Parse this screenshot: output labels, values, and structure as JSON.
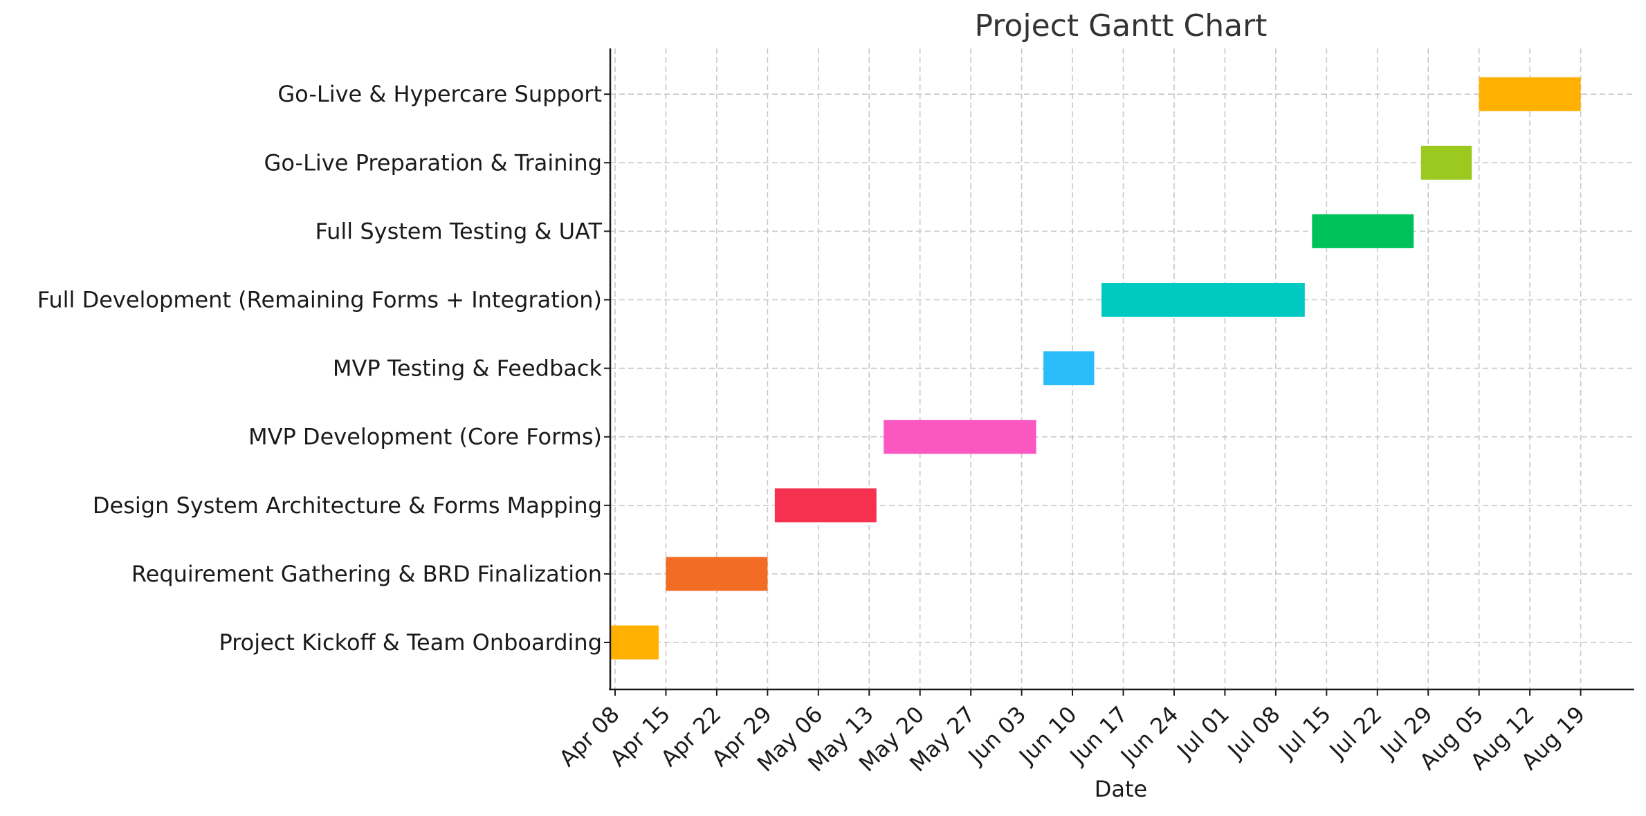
{
  "chart_data": {
    "type": "gantt",
    "title": "Project Gantt Chart",
    "xlabel": "Date",
    "ylabel": "",
    "x_axis": {
      "type": "date",
      "range": [
        "2025-04-08",
        "2025-08-26"
      ],
      "ticks": [
        {
          "date": "2025-04-08",
          "label": "Apr 08"
        },
        {
          "date": "2025-04-15",
          "label": "Apr 15"
        },
        {
          "date": "2025-04-22",
          "label": "Apr 22"
        },
        {
          "date": "2025-04-29",
          "label": "Apr 29"
        },
        {
          "date": "2025-05-06",
          "label": "May 06"
        },
        {
          "date": "2025-05-13",
          "label": "May 13"
        },
        {
          "date": "2025-05-20",
          "label": "May 20"
        },
        {
          "date": "2025-05-27",
          "label": "May 27"
        },
        {
          "date": "2025-06-03",
          "label": "Jun 03"
        },
        {
          "date": "2025-06-10",
          "label": "Jun 10"
        },
        {
          "date": "2025-06-17",
          "label": "Jun 17"
        },
        {
          "date": "2025-06-24",
          "label": "Jun 24"
        },
        {
          "date": "2025-07-01",
          "label": "Jul 01"
        },
        {
          "date": "2025-07-08",
          "label": "Jul 08"
        },
        {
          "date": "2025-07-15",
          "label": "Jul 15"
        },
        {
          "date": "2025-07-22",
          "label": "Jul 22"
        },
        {
          "date": "2025-07-29",
          "label": "Jul 29"
        },
        {
          "date": "2025-08-05",
          "label": "Aug 05"
        },
        {
          "date": "2025-08-12",
          "label": "Aug 12"
        },
        {
          "date": "2025-08-19",
          "label": "Aug 19"
        }
      ]
    },
    "grid": true,
    "legend": "none",
    "tasks": [
      {
        "name": "Project Kickoff & Team Onboarding",
        "start": "2025-04-07",
        "end": "2025-04-14",
        "color": "#FFB000"
      },
      {
        "name": "Requirement Gathering & BRD Finalization",
        "start": "2025-04-15",
        "end": "2025-04-29",
        "color": "#F36C23"
      },
      {
        "name": "Design System Architecture & Forms Mapping",
        "start": "2025-04-30",
        "end": "2025-05-14",
        "color": "#F5314F"
      },
      {
        "name": "MVP Development (Core Forms)",
        "start": "2025-05-15",
        "end": "2025-06-05",
        "color": "#FA57C1"
      },
      {
        "name": "MVP Testing & Feedback",
        "start": "2025-06-06",
        "end": "2025-06-13",
        "color": "#2BBCFC"
      },
      {
        "name": "Full Development (Remaining Forms + Integration)",
        "start": "2025-06-14",
        "end": "2025-07-12",
        "color": "#00C9C1"
      },
      {
        "name": "Full System Testing & UAT",
        "start": "2025-07-13",
        "end": "2025-07-27",
        "color": "#00C25A"
      },
      {
        "name": "Go-Live Preparation & Training",
        "start": "2025-07-28",
        "end": "2025-08-04",
        "color": "#9BC91F"
      },
      {
        "name": "Go-Live & Hypercare Support",
        "start": "2025-08-05",
        "end": "2025-08-19",
        "color": "#FFB000"
      }
    ]
  }
}
